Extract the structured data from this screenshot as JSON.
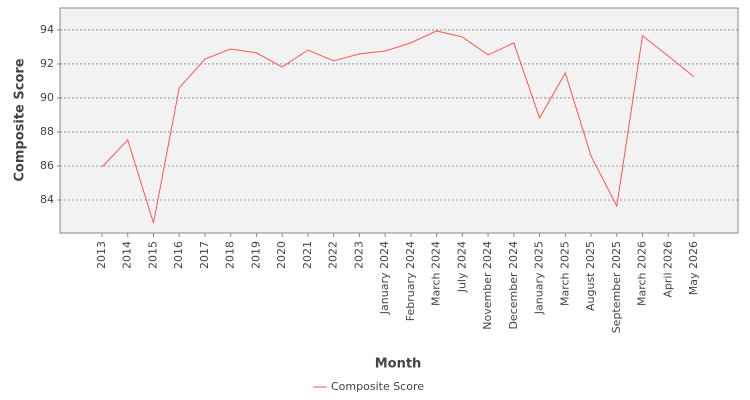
{
  "chart_data": {
    "type": "line",
    "x_label": "Month",
    "y_label": "Composite Score",
    "categories": [
      "2013",
      "2014",
      "2015",
      "2016",
      "2017",
      "2018",
      "2019",
      "2020",
      "2021",
      "2022",
      "2023",
      "January 2024",
      "February 2024",
      "March 2024",
      "July 2024",
      "November 2024",
      "December 2024",
      "January 2025",
      "March 2025",
      "August 2025",
      "September 2025",
      "March 2026",
      "April 2026",
      "May 2026"
    ],
    "series": [
      {
        "name": "Composite Score",
        "color": "#ff5555",
        "values": [
          85.94,
          87.53,
          82.65,
          90.59,
          92.29,
          92.88,
          92.65,
          91.82,
          92.82,
          92.18,
          92.59,
          92.76,
          93.24,
          93.94,
          93.59,
          92.53,
          93.24,
          88.82,
          91.47,
          86.59,
          83.65,
          93.65,
          92.47,
          91.24
        ]
      }
    ],
    "ylim": [
      82.06,
      95.29
    ],
    "yticks": [
      84,
      86,
      88,
      90,
      92,
      94
    ],
    "grid": true,
    "legend": "bottom"
  }
}
